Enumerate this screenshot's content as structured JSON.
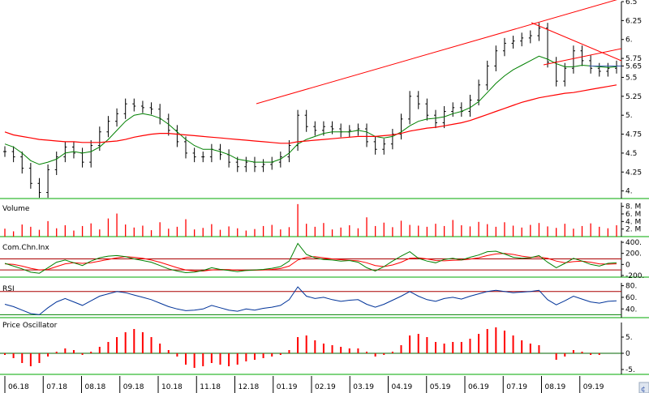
{
  "chart_data": {
    "type": "line",
    "colors": {
      "price": "#000000",
      "ma_short": "#008000",
      "ma_long": "#ff0000",
      "trendline": "#ff0000",
      "volume": "#ff0000",
      "cci_line": "#008000",
      "cci_signal": "#ff0000",
      "rsi_line": "#003399",
      "osc": "#ff0000",
      "separator": "#00aa00",
      "grid": "#c0c0c0"
    },
    "x_labels": [
      "06.18",
      "07.18",
      "08.18",
      "09.18",
      "10.18",
      "11.18",
      "12.18",
      "01.19",
      "02.19",
      "03.19",
      "04.19",
      "05.19",
      "06.19",
      "07.19",
      "08.19",
      "09.19"
    ],
    "price_panel": {
      "yticks": [
        "6.5",
        "6.25",
        "6.",
        "5.75",
        "5.65",
        "5.5",
        "5.25",
        "5.",
        "4.75",
        "4.5",
        "4.25",
        "4."
      ],
      "ytick_values": [
        6.5,
        6.25,
        6.0,
        5.75,
        5.65,
        5.5,
        5.25,
        5.0,
        4.75,
        4.5,
        4.25,
        4.0
      ],
      "ylim": [
        3.9,
        6.5
      ],
      "last_price": 5.65,
      "close": [
        4.52,
        4.45,
        4.3,
        4.1,
        3.98,
        4.28,
        4.45,
        4.58,
        4.5,
        4.38,
        4.6,
        4.78,
        4.92,
        5.02,
        5.15,
        5.12,
        5.1,
        5.08,
        4.95,
        4.8,
        4.65,
        4.5,
        4.45,
        4.45,
        4.55,
        4.48,
        4.38,
        4.32,
        4.38,
        4.32,
        4.35,
        4.38,
        4.45,
        4.6,
        5.0,
        4.85,
        4.8,
        4.85,
        4.82,
        4.78,
        4.8,
        4.82,
        4.65,
        4.55,
        4.62,
        4.75,
        4.95,
        5.25,
        5.15,
        5.0,
        4.9,
        5.05,
        5.1,
        5.05,
        5.2,
        5.4,
        5.65,
        5.85,
        5.95,
        5.98,
        6.02,
        6.05,
        6.15,
        5.7,
        5.45,
        5.62,
        5.85,
        5.72,
        5.62,
        5.58,
        5.62,
        5.65
      ],
      "ma_short": [
        4.62,
        4.58,
        4.5,
        4.4,
        4.35,
        4.38,
        4.42,
        4.5,
        4.52,
        4.5,
        4.52,
        4.58,
        4.68,
        4.8,
        4.92,
        5.0,
        5.02,
        5.0,
        4.96,
        4.88,
        4.78,
        4.68,
        4.6,
        4.55,
        4.55,
        4.52,
        4.48,
        4.42,
        4.4,
        4.38,
        4.38,
        4.38,
        4.42,
        4.5,
        4.62,
        4.68,
        4.72,
        4.76,
        4.78,
        4.78,
        4.78,
        4.8,
        4.78,
        4.72,
        4.7,
        4.72,
        4.78,
        4.86,
        4.92,
        4.95,
        4.96,
        4.98,
        5.02,
        5.05,
        5.1,
        5.18,
        5.3,
        5.42,
        5.52,
        5.6,
        5.66,
        5.72,
        5.78,
        5.74,
        5.68,
        5.64,
        5.64,
        5.66,
        5.65,
        5.64,
        5.63,
        5.64
      ],
      "ma_long": [
        4.78,
        4.74,
        4.72,
        4.7,
        4.68,
        4.67,
        4.66,
        4.65,
        4.65,
        4.64,
        4.64,
        4.64,
        4.65,
        4.66,
        4.68,
        4.71,
        4.73,
        4.75,
        4.76,
        4.76,
        4.75,
        4.74,
        4.73,
        4.72,
        4.71,
        4.7,
        4.69,
        4.68,
        4.67,
        4.66,
        4.65,
        4.64,
        4.63,
        4.63,
        4.65,
        4.66,
        4.67,
        4.68,
        4.69,
        4.7,
        4.71,
        4.72,
        4.72,
        4.72,
        4.73,
        4.74,
        4.76,
        4.79,
        4.81,
        4.83,
        4.84,
        4.86,
        4.88,
        4.9,
        4.93,
        4.97,
        5.01,
        5.05,
        5.09,
        5.13,
        5.17,
        5.2,
        5.23,
        5.25,
        5.27,
        5.29,
        5.3,
        5.32,
        5.34,
        5.36,
        5.38,
        5.4
      ]
    },
    "volume_panel": {
      "title": "Volume",
      "yticks": [
        "8. M",
        "6. M",
        "4. M",
        "2. M"
      ],
      "ytick_values": [
        8,
        6,
        4,
        2
      ],
      "ylim": [
        0,
        9
      ],
      "values": [
        2.1,
        1.4,
        3.2,
        2.6,
        1.8,
        4.1,
        2.2,
        3.0,
        1.6,
        2.8,
        3.5,
        1.9,
        4.8,
        6.1,
        3.2,
        2.4,
        2.9,
        1.7,
        3.8,
        2.1,
        2.6,
        4.6,
        1.9,
        2.3,
        3.3,
        1.8,
        2.7,
        2.2,
        1.6,
        2.0,
        2.8,
        3.1,
        1.9,
        2.5,
        8.6,
        3.4,
        2.6,
        3.6,
        1.9,
        2.4,
        3.0,
        2.2,
        5.1,
        2.8,
        3.7,
        2.5,
        4.2,
        3.1,
        2.9,
        2.6,
        3.4,
        2.8,
        4.4,
        3.0,
        2.7,
        3.9,
        3.3,
        2.6,
        3.8,
        2.9,
        2.4,
        3.1,
        3.6,
        2.7,
        2.3,
        3.4,
        2.1,
        2.8,
        3.5,
        2.6,
        2.2,
        3.0
      ]
    },
    "cci_panel": {
      "title": "Com.Chn.Inx",
      "yticks": [
        "400.",
        "200.",
        "0",
        "-200."
      ],
      "ytick_values": [
        400,
        200,
        0,
        -200
      ],
      "ylim": [
        -230,
        430
      ],
      "levels": [
        100,
        -100
      ],
      "values": [
        20,
        -30,
        -80,
        -140,
        -160,
        -60,
        40,
        80,
        30,
        -20,
        60,
        120,
        150,
        160,
        140,
        100,
        70,
        40,
        -20,
        -80,
        -120,
        -150,
        -140,
        -110,
        -60,
        -90,
        -110,
        -130,
        -110,
        -100,
        -90,
        -70,
        -40,
        60,
        380,
        180,
        120,
        90,
        80,
        60,
        70,
        40,
        -60,
        -120,
        -40,
        60,
        150,
        230,
        110,
        60,
        30,
        90,
        110,
        80,
        130,
        170,
        230,
        240,
        190,
        130,
        110,
        120,
        160,
        40,
        -60,
        20,
        110,
        60,
        0,
        -30,
        20,
        30
      ],
      "signal": [
        10,
        0,
        -30,
        -70,
        -100,
        -90,
        -40,
        10,
        30,
        20,
        30,
        60,
        90,
        120,
        140,
        130,
        110,
        80,
        40,
        -10,
        -60,
        -100,
        -120,
        -120,
        -100,
        -90,
        -95,
        -105,
        -110,
        -105,
        -100,
        -90,
        -75,
        -30,
        80,
        130,
        140,
        120,
        100,
        85,
        75,
        65,
        30,
        -20,
        -40,
        -10,
        40,
        110,
        120,
        100,
        70,
        65,
        75,
        80,
        95,
        120,
        160,
        190,
        200,
        180,
        150,
        130,
        135,
        110,
        60,
        30,
        50,
        60,
        40,
        10,
        5,
        10
      ]
    },
    "rsi_panel": {
      "title": "RSI",
      "yticks": [
        "80.",
        "60.",
        "40."
      ],
      "ytick_values": [
        80,
        60,
        40
      ],
      "ylim": [
        25,
        85
      ],
      "levels": [
        70,
        30
      ],
      "values": [
        48,
        44,
        38,
        32,
        30,
        42,
        52,
        58,
        52,
        46,
        54,
        62,
        66,
        70,
        68,
        64,
        60,
        56,
        50,
        44,
        40,
        37,
        38,
        40,
        46,
        42,
        38,
        36,
        40,
        38,
        41,
        43,
        46,
        56,
        78,
        62,
        58,
        60,
        56,
        53,
        55,
        56,
        48,
        43,
        48,
        55,
        62,
        70,
        62,
        56,
        53,
        58,
        60,
        57,
        62,
        66,
        70,
        72,
        70,
        68,
        69,
        70,
        72,
        56,
        47,
        54,
        62,
        57,
        52,
        50,
        53,
        54
      ]
    },
    "osc_panel": {
      "title": "Price Oscillator",
      "yticks": [
        "5.",
        "0",
        "-5."
      ],
      "ytick_values": [
        5,
        0,
        -5
      ],
      "ylim": [
        -6.5,
        9.5
      ],
      "values": [
        -0.5,
        -1.5,
        -3.0,
        -4.0,
        -3.0,
        -1.0,
        0.5,
        1.5,
        1.0,
        -0.5,
        0.5,
        2.0,
        3.5,
        5.0,
        6.5,
        7.5,
        6.5,
        5.0,
        3.0,
        1.0,
        -1.0,
        -3.5,
        -4.5,
        -4.0,
        -3.0,
        -3.5,
        -4.0,
        -3.5,
        -2.5,
        -2.0,
        -1.5,
        -1.0,
        -0.5,
        1.0,
        5.0,
        5.5,
        4.0,
        3.0,
        2.5,
        2.0,
        1.5,
        1.5,
        0.5,
        -1.0,
        -0.5,
        0.5,
        2.5,
        5.5,
        6.0,
        5.0,
        3.5,
        3.0,
        3.5,
        3.5,
        4.5,
        6.0,
        7.5,
        8.0,
        7.0,
        5.5,
        4.0,
        3.0,
        2.5,
        0.0,
        -2.0,
        -1.0,
        1.0,
        0.5,
        -0.5,
        -0.5,
        0.0,
        0.0
      ]
    }
  }
}
